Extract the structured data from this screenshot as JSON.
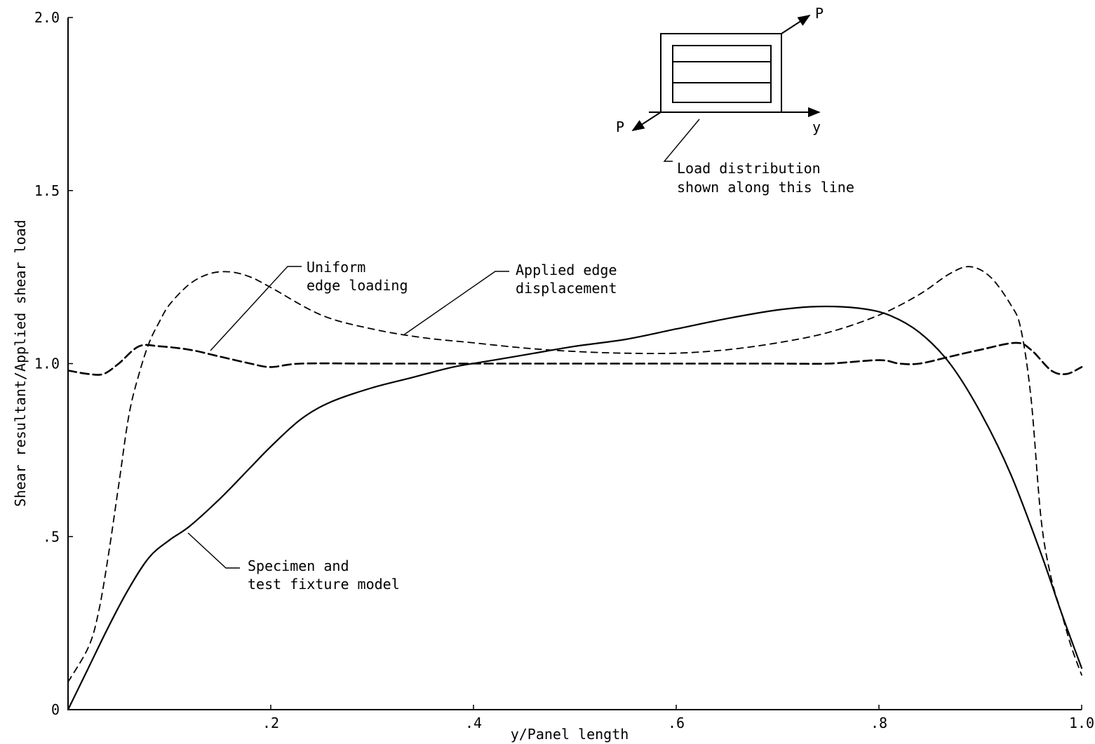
{
  "chart_data": {
    "type": "line",
    "xlabel": "y/Panel length",
    "ylabel": "Shear resultant/Applied shear load",
    "xlim": [
      0,
      1.0
    ],
    "ylim": [
      0,
      2.0
    ],
    "x_ticks": [
      {
        "value": 0.2,
        "label": ".2"
      },
      {
        "value": 0.4,
        "label": ".4"
      },
      {
        "value": 0.6,
        "label": ".6"
      },
      {
        "value": 0.8,
        "label": ".8"
      },
      {
        "value": 1.0,
        "label": "1.0"
      }
    ],
    "y_ticks": [
      {
        "value": 0,
        "label": "0"
      },
      {
        "value": 0.5,
        "label": ".5"
      },
      {
        "value": 1.0,
        "label": "1.0"
      },
      {
        "value": 1.5,
        "label": "1.5"
      },
      {
        "value": 2.0,
        "label": "2.0"
      }
    ],
    "grid": false,
    "series": [
      {
        "name": "Specimen and test fixture model",
        "style": "solid",
        "x": [
          0.0,
          0.02,
          0.04,
          0.06,
          0.08,
          0.1,
          0.12,
          0.15,
          0.18,
          0.2,
          0.23,
          0.26,
          0.3,
          0.34,
          0.38,
          0.42,
          0.46,
          0.5,
          0.55,
          0.6,
          0.65,
          0.7,
          0.74,
          0.78,
          0.81,
          0.84,
          0.87,
          0.9,
          0.93,
          0.96,
          0.98,
          1.0
        ],
        "y": [
          0.0,
          0.12,
          0.24,
          0.35,
          0.44,
          0.49,
          0.53,
          0.61,
          0.7,
          0.76,
          0.84,
          0.89,
          0.93,
          0.96,
          0.99,
          1.01,
          1.03,
          1.05,
          1.07,
          1.1,
          1.13,
          1.155,
          1.165,
          1.16,
          1.14,
          1.09,
          1.0,
          0.86,
          0.68,
          0.45,
          0.28,
          0.12
        ]
      },
      {
        "name": "Uniform edge loading",
        "style": "dashed",
        "x": [
          0.0,
          0.02,
          0.035,
          0.05,
          0.07,
          0.09,
          0.12,
          0.15,
          0.18,
          0.2,
          0.23,
          0.3,
          0.4,
          0.5,
          0.6,
          0.7,
          0.75,
          0.8,
          0.82,
          0.84,
          0.87,
          0.9,
          0.935,
          0.95,
          0.97,
          0.985,
          1.0
        ],
        "y": [
          0.98,
          0.97,
          0.97,
          1.0,
          1.05,
          1.05,
          1.04,
          1.02,
          1.0,
          0.99,
          1.0,
          1.0,
          1.0,
          1.0,
          1.0,
          1.0,
          1.0,
          1.01,
          1.0,
          1.0,
          1.02,
          1.04,
          1.06,
          1.04,
          0.98,
          0.97,
          0.99
        ]
      },
      {
        "name": "Applied edge displacement",
        "style": "dashed",
        "x": [
          0.0,
          0.02,
          0.03,
          0.04,
          0.05,
          0.06,
          0.07,
          0.08,
          0.09,
          0.1,
          0.12,
          0.14,
          0.16,
          0.18,
          0.2,
          0.25,
          0.3,
          0.35,
          0.4,
          0.45,
          0.5,
          0.55,
          0.6,
          0.65,
          0.7,
          0.75,
          0.8,
          0.84,
          0.87,
          0.89,
          0.91,
          0.93,
          0.94,
          0.95,
          0.96,
          0.97,
          0.98,
          0.99,
          1.0
        ],
        "y": [
          0.08,
          0.18,
          0.28,
          0.45,
          0.65,
          0.85,
          0.97,
          1.06,
          1.12,
          1.17,
          1.23,
          1.26,
          1.265,
          1.25,
          1.22,
          1.14,
          1.1,
          1.075,
          1.06,
          1.045,
          1.035,
          1.03,
          1.03,
          1.04,
          1.06,
          1.09,
          1.14,
          1.2,
          1.26,
          1.28,
          1.25,
          1.17,
          1.1,
          0.9,
          0.55,
          0.38,
          0.28,
          0.18,
          0.1
        ]
      }
    ],
    "annotations": {
      "uniform": [
        "Uniform",
        "edge loading"
      ],
      "displacement": [
        "Applied edge",
        "displacement"
      ],
      "specimen": [
        "Specimen and",
        "test fixture model"
      ],
      "inset_label": [
        "Load distribution",
        "shown along this line"
      ],
      "inset_p_top": "P",
      "inset_p_bottom": "P",
      "inset_y": "y"
    }
  }
}
